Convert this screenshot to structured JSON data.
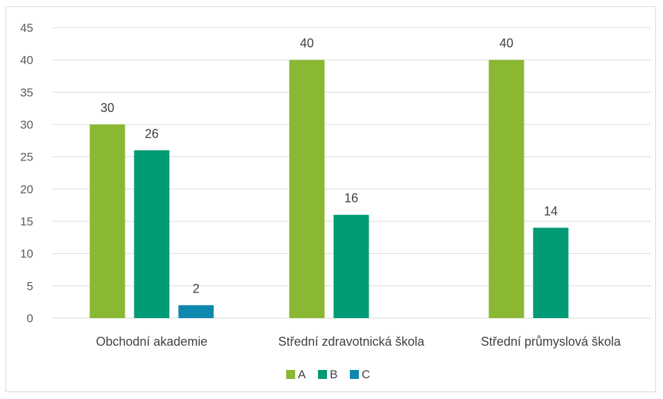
{
  "chart_data": {
    "type": "bar",
    "categories": [
      "Obchodní akademie",
      "Střední zdravotnická škola",
      "Střední průmyslová škola"
    ],
    "series": [
      {
        "name": "A",
        "color": "#8ab833",
        "values": [
          30,
          40,
          40
        ]
      },
      {
        "name": "B",
        "color": "#009a74",
        "values": [
          26,
          16,
          14
        ]
      },
      {
        "name": "C",
        "color": "#0f88b0",
        "values": [
          2,
          null,
          null
        ]
      }
    ],
    "title": "",
    "xlabel": "",
    "ylabel": "",
    "ylim": [
      0,
      45
    ],
    "yticks": [
      0,
      5,
      10,
      15,
      20,
      25,
      30,
      35,
      40,
      45
    ],
    "grid": true,
    "gridline_color": "#d9d9d9",
    "legend_position": "bottom",
    "data_labels": true
  }
}
